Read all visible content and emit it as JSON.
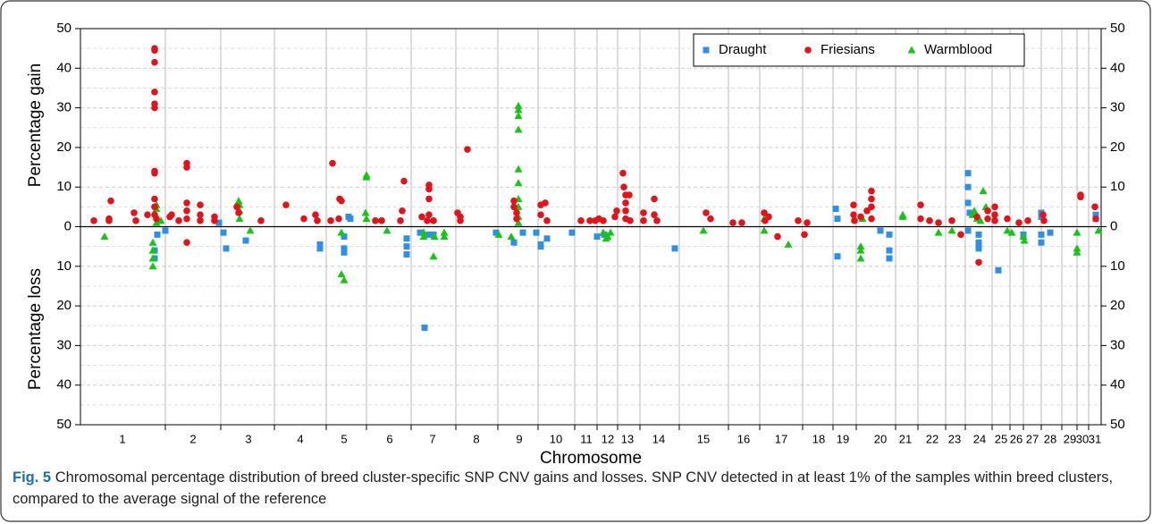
{
  "chart_data": {
    "type": "scatter",
    "ylabel_top": "Percentage gain",
    "ylabel_bottom": "Percentage loss",
    "xlabel": "Chromosome",
    "fig_label": "Fig. 5",
    "caption": "Chromosomal percentage distribution of breed cluster-specific SNP CNV gains and losses. SNP CNV detected in at least 1% of the samples within breed clusters, compared to the average signal of the reference",
    "xlim": [
      90,
      1232
    ],
    "ylim": [
      -50,
      50
    ],
    "yticks": [
      {
        "value": -50,
        "label": "50"
      },
      {
        "value": -40,
        "label": "40"
      },
      {
        "value": -30,
        "label": "30"
      },
      {
        "value": -20,
        "label": "20"
      },
      {
        "value": -10,
        "label": "10"
      },
      0,
      10,
      20,
      30,
      40,
      50
    ],
    "yminorticks": [
      -45,
      -35,
      -25,
      -15,
      -5,
      5,
      15,
      25,
      35,
      45
    ],
    "xticks": [
      {
        "value": 137,
        "label": "1"
      },
      {
        "value": 216,
        "label": "2"
      },
      {
        "value": 278,
        "label": "3"
      },
      {
        "value": 336,
        "label": "4"
      },
      {
        "value": 385,
        "label": "5"
      },
      {
        "value": 436,
        "label": "6"
      },
      {
        "value": 484,
        "label": "7"
      },
      {
        "value": 533,
        "label": "8"
      },
      {
        "value": 581,
        "label": "9"
      },
      {
        "value": 622,
        "label": "10"
      },
      {
        "value": 656,
        "label": "11"
      },
      {
        "value": 680,
        "label": "12"
      },
      {
        "value": 702,
        "label": "13"
      },
      {
        "value": 737,
        "label": "14"
      },
      {
        "value": 787,
        "label": "15"
      },
      {
        "value": 832,
        "label": "16"
      },
      {
        "value": 874,
        "label": "17"
      },
      {
        "value": 916,
        "label": "18"
      },
      {
        "value": 943,
        "label": "19"
      },
      {
        "value": 985,
        "label": "20"
      },
      {
        "value": 1013,
        "label": "21"
      },
      {
        "value": 1043,
        "label": "22"
      },
      {
        "value": 1068,
        "label": "23"
      },
      {
        "value": 1096,
        "label": "24"
      },
      {
        "value": 1120,
        "label": "25"
      },
      {
        "value": 1137,
        "label": "26"
      },
      {
        "value": 1155,
        "label": "27"
      },
      {
        "value": 1175,
        "label": "28"
      },
      {
        "value": 1197,
        "label": "29"
      },
      {
        "value": 1211,
        "label": "30"
      },
      {
        "value": 1225,
        "label": "31"
      }
    ],
    "chromosome_bounds": [
      185,
      247,
      307,
      365,
      410,
      460,
      510,
      557,
      602,
      643,
      668,
      691,
      716,
      760,
      815,
      850,
      898,
      932,
      958,
      1002,
      1027,
      1058,
      1080,
      1110,
      1130,
      1145,
      1165,
      1188,
      1205,
      1218
    ],
    "grid": true,
    "legend": "upper right",
    "series": [
      {
        "name": "Draught",
        "color": "#2f8fe6",
        "marker": "square",
        "x": [
          173,
          173,
          176,
          185,
          245,
          250,
          253,
          275,
          358,
          358,
          390,
          385,
          385,
          385,
          392,
          455,
          455,
          455,
          470,
          475,
          480,
          485,
          555,
          575,
          585,
          600,
          605,
          605,
          612,
          640,
          668,
          676,
          755,
          935,
          937,
          937,
          985,
          995,
          995,
          995,
          1083,
          1083,
          1083,
          1085,
          1095,
          1095,
          1095,
          1083,
          1117,
          1145,
          1165,
          1165,
          1165,
          1165,
          1175,
          1226,
          1226
        ],
        "values": [
          -8,
          -6,
          -2,
          -1,
          1,
          -1.5,
          -5.5,
          -3.5,
          -4.5,
          -5.5,
          2.5,
          -2.5,
          -5.5,
          -6.5,
          2,
          -3,
          -5,
          -7,
          -1.5,
          -25.5,
          -2,
          -2,
          -1.5,
          -4,
          -1.5,
          -1.5,
          -4.5,
          -5,
          -3,
          -1.5,
          -2.5,
          -2,
          -5.5,
          4.5,
          2,
          -7.5,
          -1,
          -2,
          -6,
          -8,
          13.5,
          10,
          6,
          3.5,
          -2,
          -4,
          -5.5,
          -1,
          -11,
          -2,
          3.5,
          2.5,
          -2,
          -4,
          -1.5,
          3,
          2
        ]
      },
      {
        "name": "Friesians",
        "color": "#e3131b",
        "marker": "circle",
        "x": [
          105,
          122,
          122,
          124,
          150,
          152,
          165,
          173,
          173,
          173,
          173,
          173,
          173,
          173,
          173,
          173,
          173,
          173,
          175,
          190,
          192,
          200,
          209,
          209,
          209,
          209,
          209,
          209,
          224,
          224,
          224,
          240,
          240,
          265,
          267,
          292,
          320,
          340,
          353,
          355,
          372,
          380,
          382,
          370,
          379,
          420,
          427,
          452,
          450,
          448,
          472,
          480,
          480,
          480,
          480,
          478,
          485,
          512,
          515,
          515,
          523,
          575,
          575,
          578,
          578,
          605,
          610,
          605,
          612,
          650,
          660,
          666,
          670,
          675,
          688,
          690,
          697,
          698,
          700,
          700,
          700,
          704,
          700,
          705,
          720,
          720,
          732,
          732,
          735,
          790,
          795,
          820,
          830,
          855,
          860,
          856,
          870,
          893,
          900,
          903,
          955,
          955,
          956,
          963,
          970,
          975,
          975,
          975,
          975,
          1030,
          1030,
          1040,
          1050,
          1065,
          1075,
          1093,
          1095,
          1105,
          1105,
          1113,
          1113,
          1113,
          1127,
          1140,
          1150,
          1167,
          1168,
          1209,
          1209,
          1225,
          1226
        ],
        "values": [
          1.5,
          1.5,
          2,
          6.5,
          3.5,
          1.5,
          3,
          45,
          44.5,
          41.5,
          34,
          31,
          30,
          14,
          13.5,
          7,
          5,
          3,
          2,
          2.5,
          3,
          1.5,
          16,
          15,
          6,
          4,
          2,
          -4,
          5.5,
          3,
          1.5,
          2.5,
          1.5,
          5,
          3.5,
          1.5,
          5.5,
          2,
          3,
          1.5,
          16,
          7,
          6.5,
          1.5,
          2,
          1.5,
          1.5,
          11.5,
          4,
          1.5,
          2.5,
          10.5,
          9.5,
          7,
          3,
          1.5,
          1.5,
          3.5,
          2.5,
          1.5,
          19.5,
          6.5,
          5,
          3.5,
          2,
          5.5,
          6,
          3,
          1.5,
          1.5,
          1.5,
          1.5,
          2,
          1.5,
          2.5,
          4,
          13.5,
          10,
          8,
          6,
          4,
          8,
          2,
          1.5,
          3.5,
          1.5,
          7,
          3,
          1.5,
          3.5,
          2,
          1,
          1,
          3.5,
          2.5,
          1.5,
          -2.5,
          1.5,
          -2,
          1,
          5.5,
          3,
          1.5,
          2.5,
          4,
          7,
          9,
          5,
          2,
          5.5,
          2,
          1.5,
          1,
          1.5,
          -2,
          2.5,
          -9,
          4,
          2,
          5,
          3,
          1.5,
          2,
          1,
          1.5,
          3,
          1.5,
          8,
          7.5,
          5,
          2
        ]
      },
      {
        "name": "Warmblood",
        "color": "#16c516",
        "marker": "triangle",
        "x": [
          117,
          171,
          171,
          171,
          171,
          175,
          175,
          175,
          180,
          267,
          268,
          268,
          268,
          280,
          382,
          382,
          385,
          410,
          410,
          409,
          410,
          433,
          474,
          474,
          486,
          485,
          497,
          497,
          558,
          572,
          580,
          580,
          580,
          580,
          580,
          580,
          580,
          580,
          580,
          580,
          675,
          678,
          680,
          683,
          787,
          855,
          855,
          882,
          963,
          963,
          963,
          965,
          1010,
          1010,
          1050,
          1065,
          1088,
          1090,
          1093,
          1097,
          1100,
          1103,
          1127,
          1132,
          1145,
          1146,
          1205,
          1205,
          1205,
          1229
        ],
        "values": [
          -2.5,
          -4,
          -6,
          -8,
          -10,
          5.5,
          4.5,
          1,
          1.5,
          6.5,
          5.5,
          4,
          2,
          -1,
          -1.5,
          -12,
          -13.5,
          13,
          12.5,
          3.5,
          2,
          -1,
          -1.5,
          -2.5,
          -2.5,
          -7.5,
          -1.5,
          -2.5,
          -2,
          -2.5,
          30.5,
          29.5,
          28,
          24.5,
          14.5,
          11,
          7,
          5,
          2.5,
          1,
          -1.5,
          -3,
          -2.5,
          -1.5,
          -1,
          -1,
          2,
          -4.5,
          -5,
          -6,
          -8,
          2,
          3,
          2.5,
          -1.5,
          -1,
          3,
          4,
          2,
          1.5,
          9,
          5,
          -1,
          -1.5,
          -2.5,
          -3.5,
          -1.5,
          -5.5,
          -6.5,
          -1
        ]
      }
    ]
  }
}
